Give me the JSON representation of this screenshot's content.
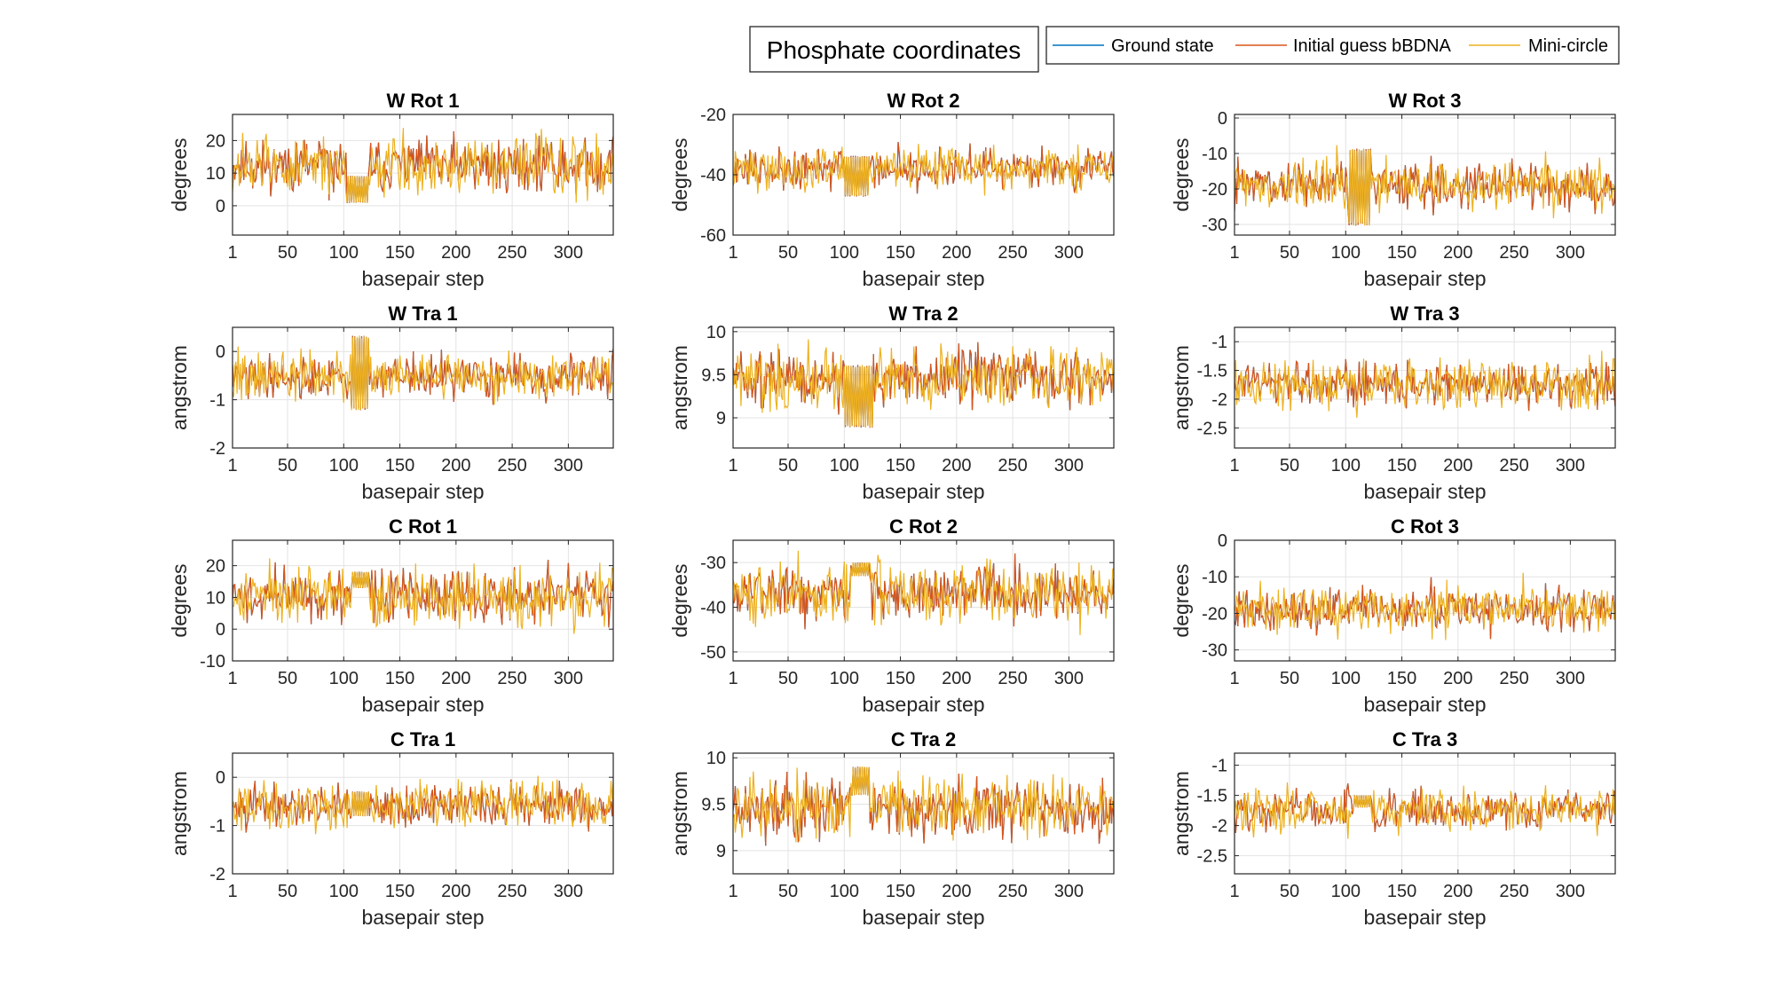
{
  "figure": {
    "title": "Phosphate coordinates"
  },
  "legend": {
    "placement": "top-right",
    "items": [
      {
        "label": "Ground state",
        "color": "#0072BD"
      },
      {
        "label": "Initial guess bBDNA",
        "color": "#D95319"
      },
      {
        "label": "Mini-circle",
        "color": "#EDB120"
      }
    ]
  },
  "chart_data": [
    {
      "type": "line",
      "title": "W Rot 1",
      "xlabel": "basepair step",
      "ylabel": "degrees",
      "xlim": [
        1,
        340
      ],
      "ylim": [
        -9,
        28
      ],
      "xticks": [
        1,
        50,
        100,
        150,
        200,
        250,
        300
      ],
      "yticks": [
        0,
        10,
        20
      ],
      "grid": true,
      "series": [
        {
          "name": "Ground state",
          "mean": 12,
          "amp": 8,
          "seed": 11,
          "block": {
            "from": 103,
            "to": 122,
            "lo": 1,
            "hi": 9
          }
        },
        {
          "name": "Initial guess bBDNA",
          "mean": 12,
          "amp": 8,
          "seed": 11,
          "block": {
            "from": 103,
            "to": 122,
            "lo": 1,
            "hi": 9
          }
        },
        {
          "name": "Mini-circle",
          "mean": 12,
          "amp": 8.5,
          "seed": 12,
          "block": {
            "from": 103,
            "to": 122,
            "lo": 1,
            "hi": 9
          }
        }
      ]
    },
    {
      "type": "line",
      "title": "W Rot 2",
      "xlabel": "basepair step",
      "ylabel": "degrees",
      "xlim": [
        1,
        340
      ],
      "ylim": [
        -60,
        -20
      ],
      "xticks": [
        1,
        50,
        100,
        150,
        200,
        250,
        300
      ],
      "yticks": [
        -60,
        -40,
        -20
      ],
      "grid": true,
      "series": [
        {
          "name": "Ground state",
          "mean": -38,
          "amp": 6,
          "seed": 21,
          "block": {
            "from": 100,
            "to": 122,
            "lo": -47,
            "hi": -34
          }
        },
        {
          "name": "Initial guess bBDNA",
          "mean": -38,
          "amp": 6,
          "seed": 21,
          "block": {
            "from": 100,
            "to": 122,
            "lo": -47,
            "hi": -34
          }
        },
        {
          "name": "Mini-circle",
          "mean": -38,
          "amp": 6.5,
          "seed": 22,
          "block": {
            "from": 100,
            "to": 122,
            "lo": -47,
            "hi": -34
          }
        }
      ]
    },
    {
      "type": "line",
      "title": "W Rot 3",
      "xlabel": "basepair step",
      "ylabel": "degrees",
      "xlim": [
        1,
        340
      ],
      "ylim": [
        -33,
        1
      ],
      "xticks": [
        1,
        50,
        100,
        150,
        200,
        250,
        300
      ],
      "yticks": [
        -30,
        -20,
        -10,
        0
      ],
      "grid": true,
      "series": [
        {
          "name": "Ground state",
          "mean": -19,
          "amp": 6,
          "seed": 31,
          "block": {
            "from": 103,
            "to": 122,
            "lo": -30,
            "hi": -9
          }
        },
        {
          "name": "Initial guess bBDNA",
          "mean": -19,
          "amp": 6,
          "seed": 31,
          "block": {
            "from": 103,
            "to": 122,
            "lo": -30,
            "hi": -9
          }
        },
        {
          "name": "Mini-circle",
          "mean": -19,
          "amp": 6.5,
          "seed": 32,
          "block": {
            "from": 103,
            "to": 122,
            "lo": -30,
            "hi": -9
          }
        }
      ]
    },
    {
      "type": "line",
      "title": "W Tra 1",
      "xlabel": "basepair step",
      "ylabel": "angstrom",
      "xlim": [
        1,
        340
      ],
      "ylim": [
        -2,
        0.5
      ],
      "xticks": [
        1,
        50,
        100,
        150,
        200,
        250,
        300
      ],
      "yticks": [
        -2,
        -1,
        0
      ],
      "grid": true,
      "series": [
        {
          "name": "Ground state",
          "mean": -0.55,
          "amp": 0.4,
          "seed": 41,
          "block": {
            "from": 107,
            "to": 122,
            "lo": -1.2,
            "hi": 0.3
          }
        },
        {
          "name": "Initial guess bBDNA",
          "mean": -0.55,
          "amp": 0.4,
          "seed": 41,
          "block": {
            "from": 107,
            "to": 122,
            "lo": -1.2,
            "hi": 0.3
          }
        },
        {
          "name": "Mini-circle",
          "mean": -0.55,
          "amp": 0.45,
          "seed": 42,
          "block": {
            "from": 107,
            "to": 122,
            "lo": -1.2,
            "hi": 0.3
          }
        }
      ]
    },
    {
      "type": "line",
      "title": "W Tra 2",
      "xlabel": "basepair step",
      "ylabel": "angstrom",
      "xlim": [
        1,
        340
      ],
      "ylim": [
        8.65,
        10.05
      ],
      "xticks": [
        1,
        50,
        100,
        150,
        200,
        250,
        300
      ],
      "yticks": [
        9,
        9.5,
        10
      ],
      "grid": true,
      "series": [
        {
          "name": "Ground state",
          "mean": 9.45,
          "amp": 0.3,
          "seed": 51,
          "block": {
            "from": 100,
            "to": 125,
            "lo": 8.9,
            "hi": 9.6
          }
        },
        {
          "name": "Initial guess bBDNA",
          "mean": 9.45,
          "amp": 0.3,
          "seed": 51,
          "block": {
            "from": 100,
            "to": 125,
            "lo": 8.9,
            "hi": 9.6
          }
        },
        {
          "name": "Mini-circle",
          "mean": 9.45,
          "amp": 0.32,
          "seed": 52,
          "block": {
            "from": 100,
            "to": 125,
            "lo": 8.9,
            "hi": 9.6
          }
        }
      ]
    },
    {
      "type": "line",
      "title": "W Tra 3",
      "xlabel": "basepair step",
      "ylabel": "angstrom",
      "xlim": [
        1,
        340
      ],
      "ylim": [
        -2.85,
        -0.75
      ],
      "xticks": [
        1,
        50,
        100,
        150,
        200,
        250,
        300
      ],
      "yticks": [
        -2.5,
        -2,
        -1.5,
        -1
      ],
      "grid": true,
      "series": [
        {
          "name": "Ground state",
          "mean": -1.75,
          "amp": 0.35,
          "seed": 61,
          "block": null
        },
        {
          "name": "Initial guess bBDNA",
          "mean": -1.75,
          "amp": 0.35,
          "seed": 61,
          "block": null
        },
        {
          "name": "Mini-circle",
          "mean": -1.75,
          "amp": 0.38,
          "seed": 62,
          "block": null
        }
      ]
    },
    {
      "type": "line",
      "title": "C Rot 1",
      "xlabel": "basepair step",
      "ylabel": "degrees",
      "xlim": [
        1,
        340
      ],
      "ylim": [
        -10,
        28
      ],
      "xticks": [
        1,
        50,
        100,
        150,
        200,
        250,
        300
      ],
      "yticks": [
        -10,
        0,
        10,
        20
      ],
      "grid": true,
      "series": [
        {
          "name": "Ground state",
          "mean": 10,
          "amp": 8,
          "seed": 71,
          "block": {
            "from": 107,
            "to": 122,
            "lo": 13,
            "hi": 18
          }
        },
        {
          "name": "Initial guess bBDNA",
          "mean": 10,
          "amp": 8,
          "seed": 71,
          "block": {
            "from": 107,
            "to": 122,
            "lo": 13,
            "hi": 18
          }
        },
        {
          "name": "Mini-circle",
          "mean": 10,
          "amp": 8.5,
          "seed": 72,
          "block": {
            "from": 107,
            "to": 122,
            "lo": 13,
            "hi": 18
          }
        }
      ]
    },
    {
      "type": "line",
      "title": "C Rot 2",
      "xlabel": "basepair step",
      "ylabel": "degrees",
      "xlim": [
        1,
        340
      ],
      "ylim": [
        -52,
        -25
      ],
      "xticks": [
        1,
        50,
        100,
        150,
        200,
        250,
        300
      ],
      "yticks": [
        -50,
        -40,
        -30
      ],
      "grid": true,
      "series": [
        {
          "name": "Ground state",
          "mean": -37,
          "amp": 6,
          "seed": 81,
          "block": {
            "from": 107,
            "to": 122,
            "lo": -33,
            "hi": -30
          }
        },
        {
          "name": "Initial guess bBDNA",
          "mean": -37,
          "amp": 6,
          "seed": 81,
          "block": {
            "from": 107,
            "to": 122,
            "lo": -33,
            "hi": -30
          }
        },
        {
          "name": "Mini-circle",
          "mean": -37,
          "amp": 6.5,
          "seed": 82,
          "block": {
            "from": 107,
            "to": 122,
            "lo": -33,
            "hi": -30
          }
        }
      ]
    },
    {
      "type": "line",
      "title": "C Rot 3",
      "xlabel": "basepair step",
      "ylabel": "degrees",
      "xlim": [
        1,
        340
      ],
      "ylim": [
        -33,
        0
      ],
      "xticks": [
        1,
        50,
        100,
        150,
        200,
        250,
        300
      ],
      "yticks": [
        -30,
        -20,
        -10,
        0
      ],
      "grid": true,
      "series": [
        {
          "name": "Ground state",
          "mean": -19,
          "amp": 5.5,
          "seed": 91,
          "block": null
        },
        {
          "name": "Initial guess bBDNA",
          "mean": -19,
          "amp": 5.5,
          "seed": 91,
          "block": null
        },
        {
          "name": "Mini-circle",
          "mean": -19,
          "amp": 6,
          "seed": 92,
          "block": null
        }
      ]
    },
    {
      "type": "line",
      "title": "C Tra 1",
      "xlabel": "basepair step",
      "ylabel": "angstrom",
      "xlim": [
        1,
        340
      ],
      "ylim": [
        -2,
        0.5
      ],
      "xticks": [
        1,
        50,
        100,
        150,
        200,
        250,
        300
      ],
      "yticks": [
        -2,
        -1,
        0
      ],
      "grid": true,
      "series": [
        {
          "name": "Ground state",
          "mean": -0.6,
          "amp": 0.4,
          "seed": 101,
          "block": {
            "from": 107,
            "to": 122,
            "lo": -0.8,
            "hi": -0.3
          }
        },
        {
          "name": "Initial guess bBDNA",
          "mean": -0.6,
          "amp": 0.4,
          "seed": 101,
          "block": {
            "from": 107,
            "to": 122,
            "lo": -0.8,
            "hi": -0.3
          }
        },
        {
          "name": "Mini-circle",
          "mean": -0.6,
          "amp": 0.45,
          "seed": 102,
          "block": {
            "from": 107,
            "to": 122,
            "lo": -0.8,
            "hi": -0.3
          }
        }
      ]
    },
    {
      "type": "line",
      "title": "C Tra 2",
      "xlabel": "basepair step",
      "ylabel": "angstrom",
      "xlim": [
        1,
        340
      ],
      "ylim": [
        8.75,
        10.05
      ],
      "xticks": [
        1,
        50,
        100,
        150,
        200,
        250,
        300
      ],
      "yticks": [
        9,
        9.5,
        10
      ],
      "grid": true,
      "series": [
        {
          "name": "Ground state",
          "mean": 9.45,
          "amp": 0.3,
          "seed": 111,
          "block": {
            "from": 107,
            "to": 122,
            "lo": 9.6,
            "hi": 9.9
          }
        },
        {
          "name": "Initial guess bBDNA",
          "mean": 9.45,
          "amp": 0.3,
          "seed": 111,
          "block": {
            "from": 107,
            "to": 122,
            "lo": 9.6,
            "hi": 9.9
          }
        },
        {
          "name": "Mini-circle",
          "mean": 9.45,
          "amp": 0.32,
          "seed": 112,
          "block": {
            "from": 107,
            "to": 122,
            "lo": 9.6,
            "hi": 9.9
          }
        }
      ]
    },
    {
      "type": "line",
      "title": "C Tra 3",
      "xlabel": "basepair step",
      "ylabel": "angstrom",
      "xlim": [
        1,
        340
      ],
      "ylim": [
        -2.8,
        -0.8
      ],
      "xticks": [
        1,
        50,
        100,
        150,
        200,
        250,
        300
      ],
      "yticks": [
        -2.5,
        -2,
        -1.5,
        -1
      ],
      "grid": true,
      "series": [
        {
          "name": "Ground state",
          "mean": -1.75,
          "amp": 0.3,
          "seed": 121,
          "block": {
            "from": 107,
            "to": 122,
            "lo": -1.7,
            "hi": -1.5
          }
        },
        {
          "name": "Initial guess bBDNA",
          "mean": -1.75,
          "amp": 0.3,
          "seed": 121,
          "block": {
            "from": 107,
            "to": 122,
            "lo": -1.7,
            "hi": -1.5
          }
        },
        {
          "name": "Mini-circle",
          "mean": -1.75,
          "amp": 0.33,
          "seed": 122,
          "block": {
            "from": 107,
            "to": 122,
            "lo": -1.7,
            "hi": -1.5
          }
        }
      ]
    }
  ]
}
